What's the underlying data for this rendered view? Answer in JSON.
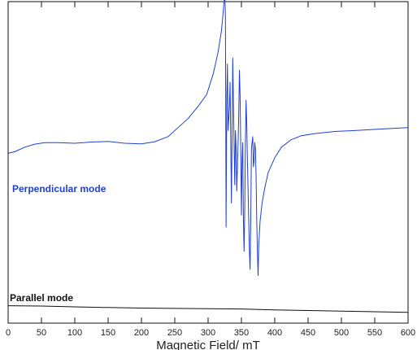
{
  "chart_data": {
    "type": "line",
    "title": "",
    "xlabel": "Magnetic Field/ mT",
    "ylabel": "",
    "xlim": [
      0,
      600
    ],
    "xticks": [
      "0",
      "50",
      "100",
      "150",
      "200",
      "250",
      "300",
      "350",
      "400",
      "450",
      "500",
      "550",
      "600"
    ],
    "y_axis": "no tick labels; relative signal intensity (arbitrary units, 0 = baseline of parallel mode trace, 100 = top of plot)",
    "grid": false,
    "legend": "none; each trace labelled directly at the left",
    "series": [
      {
        "name": "Perpendicular mode",
        "color": "#1f3fd6",
        "x": [
          0,
          10,
          25,
          40,
          55,
          75,
          100,
          125,
          150,
          175,
          200,
          220,
          240,
          255,
          270,
          285,
          298,
          308,
          315,
          320,
          323,
          325,
          326,
          327,
          328,
          329,
          330,
          331,
          332,
          333,
          334,
          335,
          336,
          337,
          338,
          339,
          340,
          341,
          342,
          343,
          344,
          345,
          346,
          347,
          348,
          349,
          350,
          351,
          352,
          353,
          354,
          355,
          356,
          357,
          358,
          359,
          360,
          361,
          362,
          363,
          364,
          365,
          366,
          367,
          368,
          369,
          370,
          371,
          372,
          373,
          374,
          375,
          376,
          378,
          381,
          385,
          390,
          400,
          410,
          425,
          440,
          460,
          490,
          520,
          560,
          600
        ],
        "y": [
          52.5,
          53.0,
          54.5,
          55.5,
          56.0,
          56.0,
          55.8,
          56.2,
          56.4,
          55.8,
          55.6,
          56.3,
          58.0,
          61.0,
          64.0,
          68.0,
          72.0,
          79.0,
          86.0,
          93.0,
          100.0,
          106.0,
          98.0,
          28.0,
          70.0,
          82.0,
          60.0,
          64.0,
          68.0,
          76.0,
          56.0,
          36.0,
          58.0,
          84.0,
          70.0,
          55.0,
          42.0,
          60.0,
          54.0,
          40.0,
          48.0,
          56.0,
          66.0,
          80.0,
          72.0,
          54.0,
          32.0,
          50.0,
          56.0,
          30.0,
          20.0,
          34.0,
          56.0,
          70.0,
          62.0,
          50.0,
          40.0,
          30.0,
          20.0,
          14.0,
          30.0,
          54.0,
          56.0,
          58.0,
          48.0,
          50.0,
          56.0,
          54.0,
          45.0,
          30.0,
          20.0,
          12.0,
          22.0,
          30.0,
          36.0,
          41.0,
          46.0,
          51.0,
          54.5,
          57.0,
          58.3,
          59.0,
          59.7,
          60.0,
          60.5,
          61.0
        ]
      },
      {
        "name": "Parallel mode",
        "color": "#111111",
        "x": [
          0,
          50,
          100,
          150,
          200,
          250,
          300,
          350,
          400,
          450,
          500,
          550,
          600
        ],
        "y": [
          2.0,
          1.9,
          1.6,
          1.4,
          1.2,
          1.1,
          1.0,
          0.9,
          0.6,
          0.4,
          0.2,
          0.0,
          -0.2
        ]
      }
    ]
  }
}
